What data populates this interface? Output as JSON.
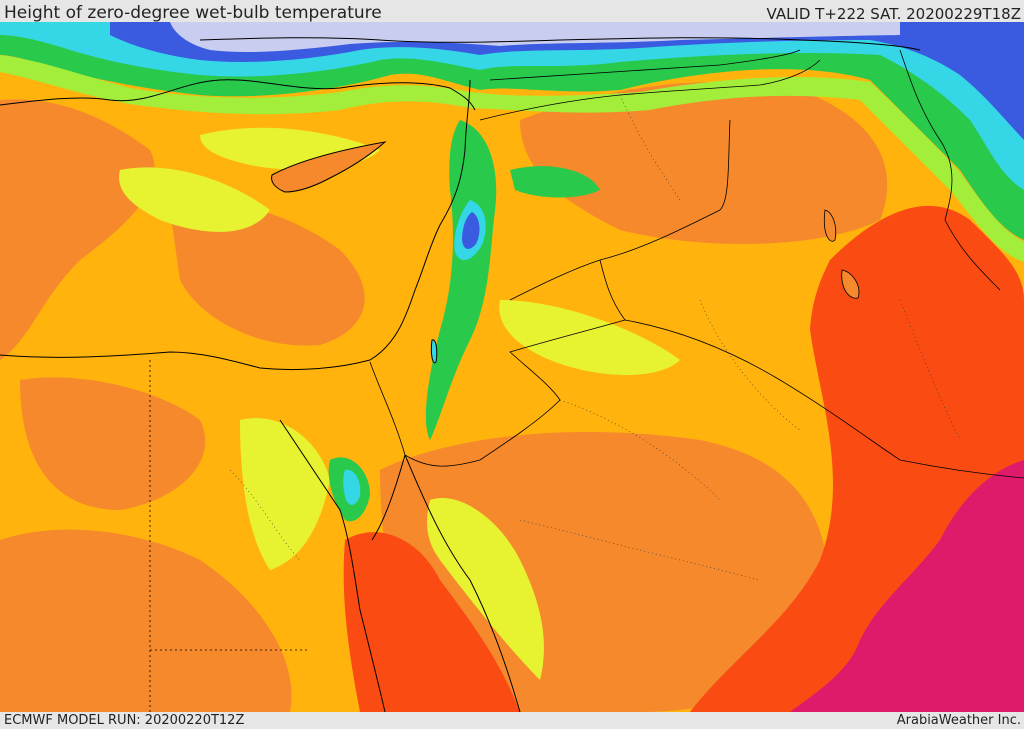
{
  "header": {
    "title": "Height of zero-degree wet-bulb temperature",
    "valid": "VALID T+222 SAT. 20200229T18Z"
  },
  "footer": {
    "model_run": "ECMWF MODEL RUN: 20200220T12Z",
    "credit": "ArabiaWeather Inc."
  },
  "palette": {
    "lavender": "#c9cdf0",
    "blue": "#3a5be0",
    "cyan": "#35d7e6",
    "green": "#29c94b",
    "light_green": "#a3ee3a",
    "yellow": "#e7f231",
    "amber": "#ffb30c",
    "orange": "#f5892c",
    "red_orange": "#fa4c12",
    "magenta": "#de1a6b"
  }
}
